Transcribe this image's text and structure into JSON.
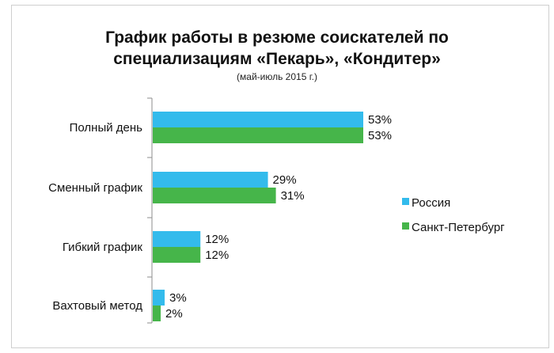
{
  "chart_data": {
    "type": "bar",
    "orientation": "horizontal",
    "title": "График работы в резюме соискателей по специализациям «Пекарь», «Кондитер»",
    "title_lines": [
      "График работы в резюме соискателей по",
      "специализациям «Пекарь», «Кондитер»"
    ],
    "subtitle": "(май-июль 2015 г.)",
    "categories": [
      "Полный день",
      "Сменный график",
      "Гибкий график",
      "Вахтовый метод"
    ],
    "series": [
      {
        "name": "Россия",
        "color": "#33bbec",
        "values": [
          53,
          29,
          12,
          3
        ],
        "labels": [
          "53%",
          "29%",
          "12%",
          "3%"
        ]
      },
      {
        "name": "Санкт-Петербург",
        "color": "#46b54a",
        "values": [
          53,
          31,
          12,
          2
        ],
        "labels": [
          "53%",
          "31%",
          "12%",
          "2%"
        ]
      }
    ],
    "unit": "%",
    "xlim": [
      0,
      60
    ],
    "grid": false,
    "legend_position": "right"
  }
}
